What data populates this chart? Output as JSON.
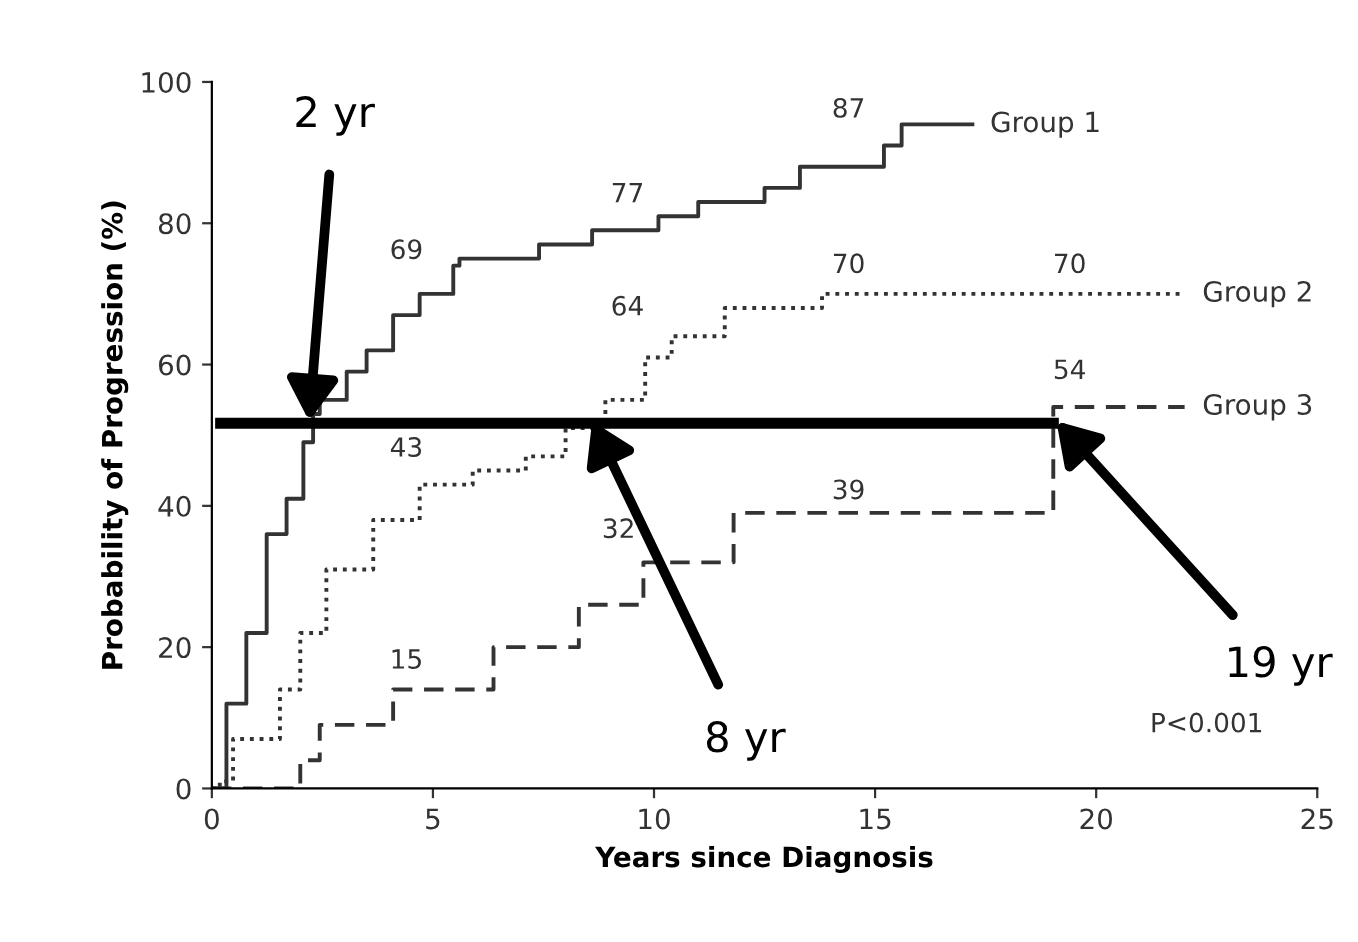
{
  "chart_data": {
    "type": "step",
    "xlabel": "Years since Diagnosis",
    "ylabel": "Probability of Progression (%)",
    "xlim": [
      0,
      25
    ],
    "xticks": [
      0,
      5,
      10,
      15,
      20,
      25
    ],
    "ylim": [
      0,
      100
    ],
    "yticks": [
      0,
      20,
      40,
      60,
      80,
      100
    ],
    "grid": false,
    "legend": false,
    "series": [
      {
        "name": "Group 1",
        "color": "#333333",
        "line_style": "solid",
        "x": [
          0,
          0.18,
          0.33,
          0.78,
          1.24,
          1.69,
          2.07,
          2.29,
          2.44,
          3.05,
          3.5,
          4.1,
          4.7,
          5.46,
          5.6,
          7.4,
          8.6,
          10.1,
          11.0,
          12.5,
          13.3,
          15.2,
          15.6,
          17.2
        ],
        "values": [
          0,
          0,
          12,
          22,
          36,
          41,
          49,
          53,
          55,
          59,
          62,
          67,
          70,
          74,
          75,
          77,
          79,
          81,
          83,
          85,
          88,
          91,
          94,
          94
        ]
      },
      {
        "name": "Group 2",
        "color": "#333333",
        "line_style": "dotted",
        "x": [
          0,
          0.18,
          0.48,
          1.54,
          2.0,
          2.59,
          3.65,
          4.7,
          5.9,
          7.1,
          8.0,
          8.9,
          9.8,
          10.4,
          11.6,
          13.8,
          22.0
        ],
        "values": [
          0,
          1,
          7,
          14,
          22,
          31,
          38,
          43,
          45,
          47,
          51,
          55,
          61,
          64,
          68,
          70,
          70
        ]
      },
      {
        "name": "Group 3",
        "color": "#333333",
        "line_style": "dashed",
        "x": [
          0,
          2.0,
          2.44,
          4.1,
          6.37,
          8.3,
          9.76,
          11.8,
          19.03,
          22.0
        ],
        "values": [
          0,
          4,
          9,
          14,
          20,
          26,
          32,
          39,
          54,
          54
        ]
      },
      {
        "type": "line",
        "color": "#000000",
        "line_style": "solid",
        "x": [
          0.2,
          19.03
        ],
        "values": [
          51.7,
          51.7
        ]
      }
    ],
    "annotations": [
      "69",
      "77",
      "87",
      "43",
      "64",
      "70",
      "70",
      "15",
      "32",
      "39",
      "54",
      {
        "text": "2 yr",
        "x": 2.2,
        "y": 52
      },
      {
        "text": "8 yr",
        "x": 8.6,
        "y": 52
      },
      {
        "text": "19 yr",
        "x": 19.1,
        "y": 52
      },
      "P<0.001"
    ]
  }
}
